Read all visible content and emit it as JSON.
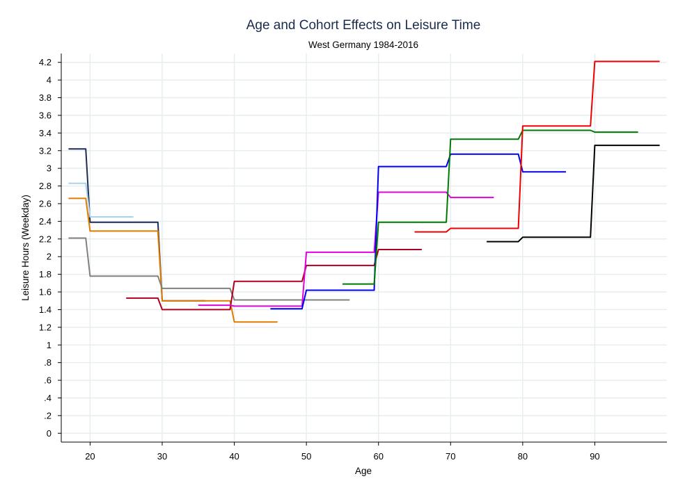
{
  "chart_data": {
    "type": "line",
    "title": "Age and Cohort Effects on Leisure Time",
    "subtitle": "West Germany 1984-2016",
    "xlabel": "Age",
    "ylabel": "Leisure Hours (Weekday)",
    "xlim": [
      16,
      100
    ],
    "ylim": [
      -0.1,
      4.3
    ],
    "xticks": [
      20,
      30,
      40,
      50,
      60,
      70,
      80,
      90
    ],
    "xtick_labels": [
      "20",
      "30",
      "40",
      "50",
      "60",
      "70",
      "80",
      "90"
    ],
    "yticks": [
      0,
      0.2,
      0.4,
      0.6,
      0.8,
      1,
      1.2,
      1.4,
      1.6,
      1.8,
      2,
      2.2,
      2.4,
      2.6,
      2.8,
      3,
      3.2,
      3.4,
      3.6,
      3.8,
      4,
      4.2
    ],
    "ytick_labels": [
      "0",
      ".2",
      ".4",
      ".6",
      ".8",
      "1",
      "1.2",
      "1.4",
      "1.6",
      "1.8",
      "2",
      "2.2",
      "2.4",
      "2.6",
      "2.8",
      "3",
      "3.2",
      "3.4",
      "3.6",
      "3.8",
      "4",
      "4.2"
    ],
    "grid": true,
    "series": [
      {
        "color": "#1c2c55",
        "points": [
          [
            17,
            3.22
          ],
          [
            19,
            3.22
          ],
          [
            19.4,
            3.22
          ],
          [
            20,
            2.39
          ],
          [
            29,
            2.39
          ],
          [
            29.4,
            2.39
          ],
          [
            30,
            1.5
          ],
          [
            36,
            1.5
          ]
        ]
      },
      {
        "color": "#a9d3e6",
        "points": [
          [
            17,
            2.83
          ],
          [
            19,
            2.83
          ],
          [
            19.4,
            2.83
          ],
          [
            20,
            2.45
          ],
          [
            26,
            2.45
          ]
        ]
      },
      {
        "color": "#e07b00",
        "points": [
          [
            17,
            2.66
          ],
          [
            19,
            2.66
          ],
          [
            19.4,
            2.66
          ],
          [
            20,
            2.29
          ],
          [
            29,
            2.29
          ],
          [
            29.4,
            2.29
          ],
          [
            30,
            1.5
          ],
          [
            36,
            1.5
          ],
          [
            39,
            1.5
          ],
          [
            39.4,
            1.5
          ],
          [
            40,
            1.26
          ],
          [
            46,
            1.26
          ]
        ]
      },
      {
        "color": "#808080",
        "points": [
          [
            17,
            2.21
          ],
          [
            19,
            2.21
          ],
          [
            19.4,
            2.21
          ],
          [
            20,
            1.78
          ],
          [
            29,
            1.78
          ],
          [
            29.4,
            1.78
          ],
          [
            30,
            1.64
          ],
          [
            39,
            1.64
          ],
          [
            39.4,
            1.64
          ],
          [
            40,
            1.51
          ],
          [
            56,
            1.51
          ]
        ]
      },
      {
        "color": "#b00020",
        "points": [
          [
            25,
            1.53
          ],
          [
            29,
            1.53
          ],
          [
            29.4,
            1.53
          ],
          [
            30,
            1.4
          ],
          [
            39,
            1.4
          ],
          [
            39.4,
            1.4
          ],
          [
            40,
            1.72
          ],
          [
            49,
            1.72
          ],
          [
            49.4,
            1.72
          ],
          [
            50,
            1.9
          ],
          [
            59,
            1.9
          ],
          [
            59.4,
            1.9
          ],
          [
            60,
            2.08
          ],
          [
            66,
            2.08
          ]
        ]
      },
      {
        "color": "#e000e0",
        "points": [
          [
            35,
            1.45
          ],
          [
            39,
            1.45
          ],
          [
            39.4,
            1.45
          ],
          [
            40,
            1.44
          ],
          [
            49,
            1.44
          ],
          [
            49.4,
            1.44
          ],
          [
            50,
            2.05
          ],
          [
            59,
            2.05
          ],
          [
            59.4,
            2.05
          ],
          [
            60,
            2.73
          ],
          [
            69,
            2.73
          ],
          [
            69.4,
            2.73
          ],
          [
            70,
            2.67
          ],
          [
            76,
            2.67
          ]
        ]
      },
      {
        "color": "#0000ee",
        "points": [
          [
            45,
            1.41
          ],
          [
            49,
            1.41
          ],
          [
            49.4,
            1.41
          ],
          [
            50,
            1.62
          ],
          [
            59,
            1.62
          ],
          [
            59.4,
            1.62
          ],
          [
            60,
            3.02
          ],
          [
            69,
            3.02
          ],
          [
            69.4,
            3.02
          ],
          [
            70,
            3.16
          ],
          [
            79,
            3.16
          ],
          [
            79.4,
            3.16
          ],
          [
            80,
            2.96
          ],
          [
            86,
            2.96
          ]
        ]
      },
      {
        "color": "#007a00",
        "points": [
          [
            55,
            1.69
          ],
          [
            59,
            1.69
          ],
          [
            59.4,
            1.69
          ],
          [
            60,
            2.39
          ],
          [
            69,
            2.39
          ],
          [
            69.4,
            2.39
          ],
          [
            70,
            3.33
          ],
          [
            79,
            3.33
          ],
          [
            79.4,
            3.33
          ],
          [
            80,
            3.43
          ],
          [
            89,
            3.43
          ],
          [
            89.4,
            3.43
          ],
          [
            90,
            3.41
          ],
          [
            96,
            3.41
          ]
        ]
      },
      {
        "color": "#ee0000",
        "points": [
          [
            65,
            2.28
          ],
          [
            69,
            2.28
          ],
          [
            69.4,
            2.28
          ],
          [
            70,
            2.32
          ],
          [
            79,
            2.32
          ],
          [
            79.4,
            2.32
          ],
          [
            80,
            3.48
          ],
          [
            89,
            3.48
          ],
          [
            89.4,
            3.48
          ],
          [
            90,
            4.21
          ],
          [
            99,
            4.21
          ]
        ]
      },
      {
        "color": "#000000",
        "points": [
          [
            75,
            2.17
          ],
          [
            79,
            2.17
          ],
          [
            79.4,
            2.17
          ],
          [
            80,
            2.22
          ],
          [
            89,
            2.22
          ],
          [
            89.4,
            2.22
          ],
          [
            90,
            3.26
          ],
          [
            99,
            3.26
          ]
        ]
      }
    ]
  }
}
